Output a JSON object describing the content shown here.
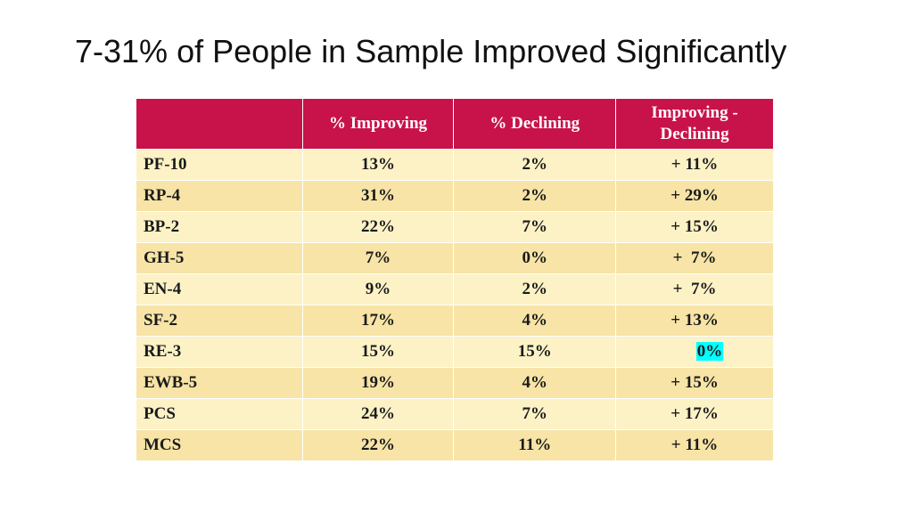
{
  "title": "7-31% of People in Sample Improved Significantly",
  "colors": {
    "header_bg": "#c8124a",
    "row_light": "#fcf2c6",
    "row_dark": "#f7e4a6",
    "highlight": "#00ffff"
  },
  "table": {
    "headers": [
      "",
      "% Improving",
      "% Declining",
      "Improving - Declining"
    ],
    "rows": [
      {
        "label": "PF-10",
        "improving": "13%",
        "declining": "2%",
        "diff": "+ 11%"
      },
      {
        "label": "RP-4",
        "improving": "31%",
        "declining": "2%",
        "diff": "+ 29%"
      },
      {
        "label": "BP-2",
        "improving": "22%",
        "declining": "7%",
        "diff": "+ 15%"
      },
      {
        "label": "GH-5",
        "improving": "7%",
        "declining": "0%",
        "diff": "+  7%"
      },
      {
        "label": "EN-4",
        "improving": "9%",
        "declining": "2%",
        "diff": "+  7%"
      },
      {
        "label": "SF-2",
        "improving": "17%",
        "declining": "4%",
        "diff": "+ 13%"
      },
      {
        "label": "RE-3",
        "improving": "15%",
        "declining": "15%",
        "diff": "0%"
      },
      {
        "label": "EWB-5",
        "improving": "19%",
        "declining": "4%",
        "diff": "+ 15%"
      },
      {
        "label": "PCS",
        "improving": "24%",
        "declining": "7%",
        "diff": "+ 17%"
      },
      {
        "label": "MCS",
        "improving": "22%",
        "declining": "11%",
        "diff": "+ 11%"
      }
    ]
  }
}
